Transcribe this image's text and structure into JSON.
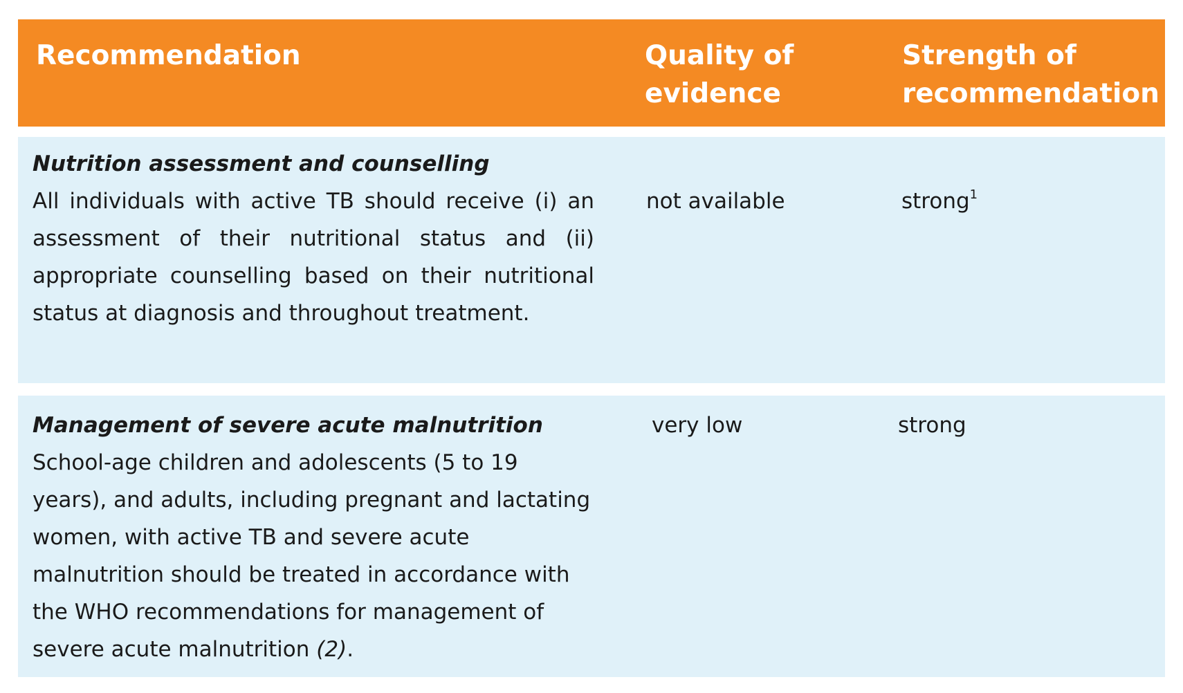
{
  "header": {
    "recommendation": "Recommendation",
    "quality": "Quality of evidence",
    "strength": "Strength of recommendation"
  },
  "rows": [
    {
      "title": "Nutrition assessment and counselling",
      "text": "All individuals with active TB should receive (i) an assessment of their nutritional status and (ii) appropriate counselling based on their nutritional status at diagnosis and throughout treatment.",
      "quality": "not available",
      "strength": "strong",
      "strength_footnote": "1"
    },
    {
      "title": "Management of severe acute malnutrition",
      "text": "School-age children and adolescents (5 to 19 years), and adults, including pregnant and lactating women, with active TB and severe acute malnutrition should be treated in accordance with the WHO recommendations for management of severe acute malnutrition",
      "citation": "(2)",
      "end_punct": ".",
      "quality": "very low",
      "strength": "strong"
    }
  ],
  "colors": {
    "header_bg": "#f48a23",
    "header_text": "#ffffff",
    "row_bg": "#e0f1f9"
  }
}
